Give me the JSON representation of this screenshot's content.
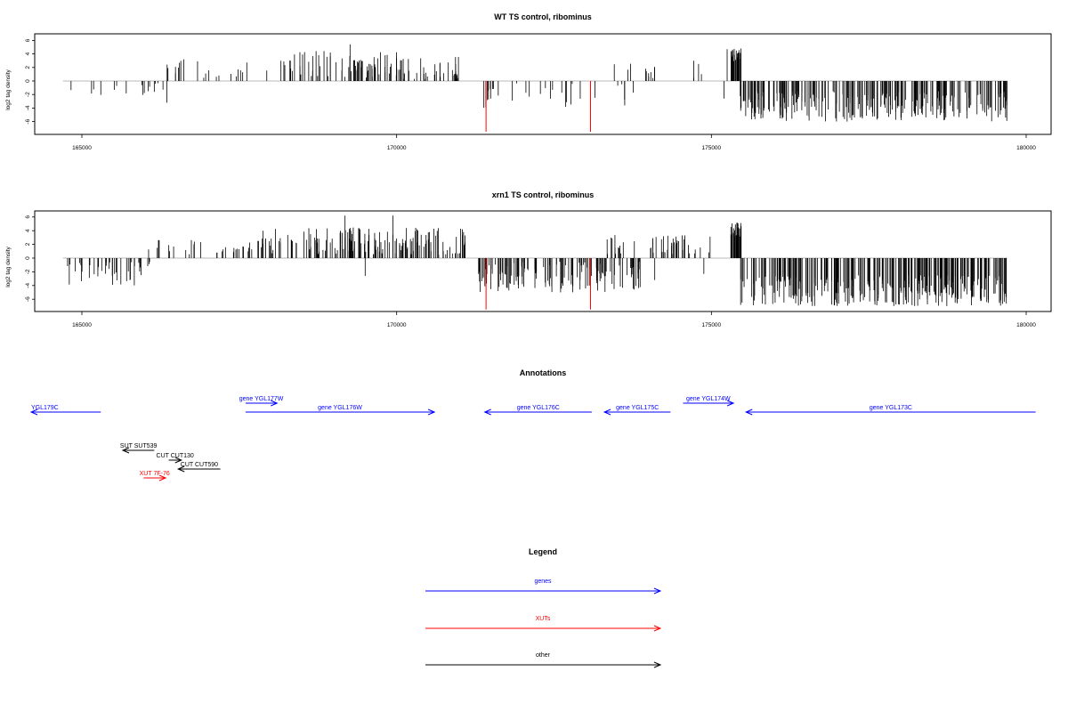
{
  "chart_data": [
    {
      "type": "bar",
      "title": "WT TS control, ribominus",
      "ylabel": "log2 tag density",
      "xlim": [
        164300,
        180700
      ],
      "ylim": [
        -8,
        7
      ],
      "x_ticks": [
        165000,
        170000,
        175000,
        180000
      ],
      "y_ticks": [
        6,
        4,
        2,
        0,
        -2,
        -4,
        -6
      ],
      "baseline_range": [
        164700,
        179700
      ],
      "series": [
        {
          "color": "#000000",
          "mode": "random",
          "segments": [
            {
              "x0": 164720,
              "x1": 166500,
              "n": 16,
              "lo": -2.2,
              "hi": -0.2
            },
            {
              "x0": 166300,
              "x1": 168200,
              "n": 22,
              "lo": 0.3,
              "hi": 3.0
            },
            {
              "x0": 168200,
              "x1": 170000,
              "n": 70,
              "lo": 0.5,
              "hi": 4.5
            },
            {
              "x0": 170000,
              "x1": 171000,
              "n": 40,
              "lo": 0.3,
              "hi": 3.6
            },
            {
              "x0": 171300,
              "x1": 173800,
              "n": 30,
              "lo": -4.0,
              "hi": -0.3
            },
            {
              "x0": 173300,
              "x1": 174900,
              "n": 14,
              "lo": 0.3,
              "hi": 2.6
            },
            {
              "x0": 175300,
              "x1": 175470,
              "n": 25,
              "lo": 2.6,
              "hi": 4.8
            },
            {
              "x0": 175450,
              "x1": 179700,
              "n": 260,
              "lo": -6.0,
              "hi": -1.5
            }
          ],
          "fixed": [
            {
              "x": 166350,
              "y": -3.2
            },
            {
              "x": 166620,
              "y": 3.2
            },
            {
              "x": 169260,
              "y": 5.4
            },
            {
              "x": 174720,
              "y": 3.0
            },
            {
              "x": 175200,
              "y": -2.6
            },
            {
              "x": 175250,
              "y": 4.7
            }
          ]
        },
        {
          "color": "#ff0000",
          "mode": "fixed",
          "points": [
            {
              "x": 171420,
              "y": -7.5
            },
            {
              "x": 173080,
              "y": -7.5
            }
          ]
        }
      ]
    },
    {
      "type": "bar",
      "title": "xrn1 TS control, ribominus",
      "ylabel": "log2 tag density",
      "xlim": [
        164300,
        180700
      ],
      "ylim": [
        -8,
        7
      ],
      "x_ticks": [
        165000,
        170000,
        175000,
        180000
      ],
      "y_ticks": [
        6,
        4,
        2,
        0,
        -2,
        -4,
        -6
      ],
      "baseline_range": [
        164700,
        179700
      ],
      "series": [
        {
          "color": "#000000",
          "mode": "random",
          "segments": [
            {
              "x0": 164720,
              "x1": 166200,
              "n": 40,
              "lo": -4.0,
              "hi": -0.5
            },
            {
              "x0": 166000,
              "x1": 167800,
              "n": 30,
              "lo": 0.3,
              "hi": 2.8
            },
            {
              "x0": 167800,
              "x1": 171100,
              "n": 160,
              "lo": 0.5,
              "hi": 4.5
            },
            {
              "x0": 171300,
              "x1": 173900,
              "n": 140,
              "lo": -5.0,
              "hi": -0.5
            },
            {
              "x0": 173300,
              "x1": 175000,
              "n": 50,
              "lo": 0.4,
              "hi": 3.4
            },
            {
              "x0": 175300,
              "x1": 175480,
              "n": 30,
              "lo": 3.0,
              "hi": 5.2
            },
            {
              "x0": 175450,
              "x1": 179700,
              "n": 300,
              "lo": -7.0,
              "hi": -2.5
            }
          ],
          "fixed": [
            {
              "x": 169180,
              "y": 6.2
            },
            {
              "x": 169500,
              "y": -2.6
            },
            {
              "x": 169940,
              "y": 6.2
            },
            {
              "x": 174100,
              "y": -3.2
            },
            {
              "x": 174880,
              "y": -2.3
            }
          ]
        },
        {
          "color": "#ff0000",
          "mode": "fixed",
          "points": [
            {
              "x": 171420,
              "y": -7.5
            },
            {
              "x": 173080,
              "y": -7.5
            }
          ]
        }
      ]
    }
  ],
  "annotations": {
    "title": "Annotations",
    "features": [
      {
        "label": "YGL179C",
        "color": "#0000ff",
        "start": 163500,
        "end": 165300,
        "strand": "-",
        "row": 1,
        "label_pos": "left"
      },
      {
        "label": "gene YGL177W",
        "color": "#0000ff",
        "start": 167600,
        "end": 168100,
        "strand": "+",
        "row": 0,
        "label_pos": "middle"
      },
      {
        "label": "gene YGL176W",
        "color": "#0000ff",
        "start": 167600,
        "end": 170600,
        "strand": "+",
        "row": 1,
        "label_pos": "middle"
      },
      {
        "label": "gene YGL176C",
        "color": "#0000ff",
        "start": 171400,
        "end": 173100,
        "strand": "-",
        "row": 1,
        "label_pos": "middle"
      },
      {
        "label": "gene YGL175C",
        "color": "#0000ff",
        "start": 173300,
        "end": 174350,
        "strand": "-",
        "row": 1,
        "label_pos": "middle"
      },
      {
        "label": "gene YGL174W",
        "color": "#0000ff",
        "start": 174550,
        "end": 175350,
        "strand": "+",
        "row": 0,
        "label_pos": "middle"
      },
      {
        "label": "gene YGL173C",
        "color": "#0000ff",
        "start": 175550,
        "end": 180150,
        "strand": "-",
        "row": 1,
        "label_pos": "middle"
      },
      {
        "label": "SUT SUT539",
        "color": "#000000",
        "start": 165650,
        "end": 166150,
        "strand": "-",
        "row": 2,
        "label_pos": "middle"
      },
      {
        "label": "CUT CUT130",
        "color": "#000000",
        "start": 166380,
        "end": 166580,
        "strand": "+",
        "row": 3,
        "label_pos": "middle"
      },
      {
        "label": "CUT CUT590",
        "color": "#000000",
        "start": 166530,
        "end": 167200,
        "strand": "-",
        "row": 4,
        "label_pos": "middle"
      },
      {
        "label": "XUT 7F-76",
        "color": "#ff0000",
        "start": 165980,
        "end": 166330,
        "strand": "+",
        "row": 5,
        "label_pos": "middle"
      }
    ]
  },
  "legend": {
    "title": "Legend",
    "items": [
      {
        "label": "genes",
        "color": "#0000ff"
      },
      {
        "label": "XUTs",
        "color": "#ff0000"
      },
      {
        "label": "other",
        "color": "#000000"
      }
    ]
  }
}
